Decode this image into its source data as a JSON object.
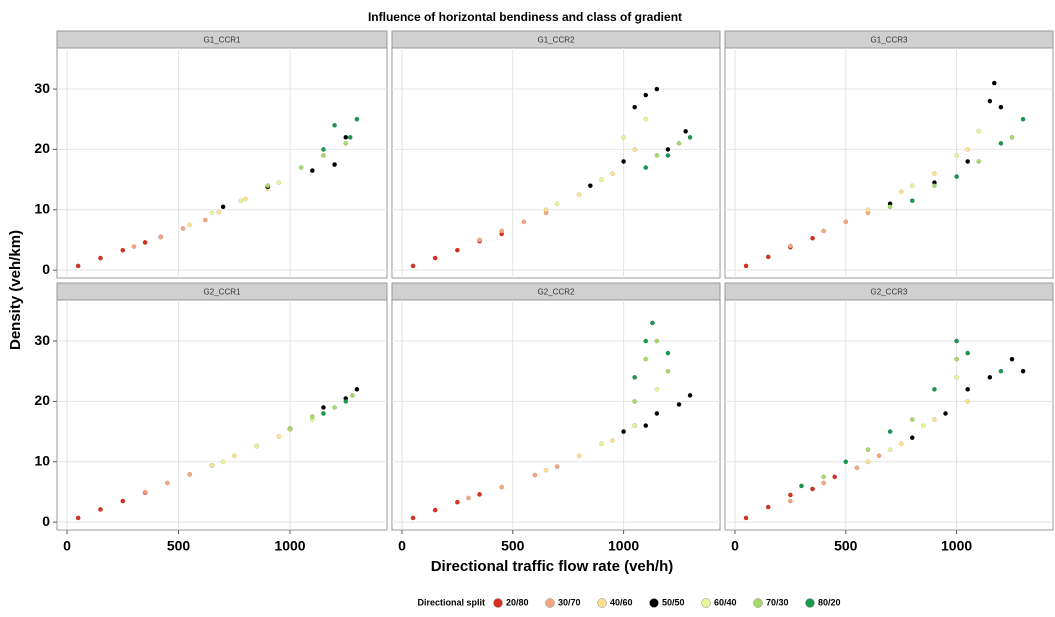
{
  "title": "Influence of horizontal bendiness and class of gradient",
  "x_label": "Directional traffic flow rate (veh/h)",
  "y_label": "Density (veh/km)",
  "legend_title": "Directional split",
  "chart_data": [
    {
      "type": "scatter",
      "facet": "G1_CCR1",
      "xlim": [
        -45,
        1435
      ],
      "ylim": [
        -1.3,
        36.8
      ],
      "xticks": [
        0,
        500,
        1000
      ],
      "yticks": [
        0,
        10,
        20,
        30
      ],
      "grid": true,
      "series": [
        {
          "name": "20/80",
          "color": "#d7301f",
          "x": [
            50,
            150,
            250,
            350,
            420
          ],
          "y": [
            0.7,
            2,
            3.3,
            4.6,
            5.5
          ]
        },
        {
          "name": "30/70",
          "color": "#f4a582",
          "x": [
            300,
            420,
            520,
            620
          ],
          "y": [
            3.9,
            5.5,
            6.9,
            8.3
          ]
        },
        {
          "name": "40/60",
          "color": "#fee090",
          "x": [
            550,
            680,
            800,
            900
          ],
          "y": [
            7.5,
            9.6,
            11.8,
            13.5
          ]
        },
        {
          "name": "50/50",
          "color": "#000000",
          "x": [
            700,
            900,
            1100,
            1200,
            1250
          ],
          "y": [
            10.5,
            13.8,
            16.5,
            17.5,
            22
          ]
        },
        {
          "name": "60/40",
          "color": "#e6f598",
          "x": [
            650,
            780,
            950
          ],
          "y": [
            9.5,
            11.5,
            14.5
          ]
        },
        {
          "name": "70/30",
          "color": "#a6d96a",
          "x": [
            900,
            1050,
            1150,
            1250
          ],
          "y": [
            14,
            17,
            19,
            21
          ]
        },
        {
          "name": "80/20",
          "color": "#1a9850",
          "x": [
            1150,
            1200,
            1270,
            1300
          ],
          "y": [
            20,
            24,
            22,
            25
          ]
        }
      ]
    },
    {
      "type": "scatter",
      "facet": "G1_CCR2",
      "xlim": [
        -45,
        1435
      ],
      "ylim": [
        -1.3,
        36.8
      ],
      "xticks": [
        0,
        500,
        1000
      ],
      "yticks": [
        0,
        10,
        20,
        30
      ],
      "grid": true,
      "series": [
        {
          "name": "20/80",
          "color": "#d7301f",
          "x": [
            50,
            150,
            250,
            350,
            450
          ],
          "y": [
            0.7,
            2,
            3.3,
            4.8,
            6
          ]
        },
        {
          "name": "30/70",
          "color": "#f4a582",
          "x": [
            350,
            450,
            550,
            650
          ],
          "y": [
            5,
            6.5,
            8,
            9.5
          ]
        },
        {
          "name": "40/60",
          "color": "#fee090",
          "x": [
            650,
            800,
            950,
            1050
          ],
          "y": [
            10,
            12.5,
            16,
            20
          ]
        },
        {
          "name": "50/50",
          "color": "#000000",
          "x": [
            850,
            1000,
            1050,
            1100,
            1150,
            1200,
            1280
          ],
          "y": [
            14,
            18,
            27,
            29,
            30,
            20,
            23
          ]
        },
        {
          "name": "60/40",
          "color": "#e6f598",
          "x": [
            700,
            900,
            1000,
            1100
          ],
          "y": [
            11,
            15,
            22,
            25
          ]
        },
        {
          "name": "70/30",
          "color": "#a6d96a",
          "x": [
            1150,
            1250
          ],
          "y": [
            19,
            21
          ]
        },
        {
          "name": "80/20",
          "color": "#1a9850",
          "x": [
            1100,
            1200,
            1300
          ],
          "y": [
            17,
            19,
            22
          ]
        }
      ]
    },
    {
      "type": "scatter",
      "facet": "G1_CCR3",
      "xlim": [
        -45,
        1435
      ],
      "ylim": [
        -1.3,
        36.8
      ],
      "xticks": [
        0,
        500,
        1000
      ],
      "yticks": [
        0,
        10,
        20,
        30
      ],
      "grid": true,
      "series": [
        {
          "name": "20/80",
          "color": "#d7301f",
          "x": [
            50,
            150,
            250,
            350
          ],
          "y": [
            0.7,
            2.2,
            3.8,
            5.3
          ]
        },
        {
          "name": "30/70",
          "color": "#f4a582",
          "x": [
            250,
            400,
            500,
            600
          ],
          "y": [
            4,
            6.5,
            8,
            9.5
          ]
        },
        {
          "name": "40/60",
          "color": "#fee090",
          "x": [
            600,
            750,
            900,
            1050
          ],
          "y": [
            10,
            13,
            16,
            20
          ]
        },
        {
          "name": "50/50",
          "color": "#000000",
          "x": [
            700,
            900,
            1050,
            1150,
            1170,
            1200
          ],
          "y": [
            11,
            14.5,
            18,
            28,
            31,
            27
          ]
        },
        {
          "name": "60/40",
          "color": "#e6f598",
          "x": [
            800,
            1000,
            1100
          ],
          "y": [
            14,
            19,
            23
          ]
        },
        {
          "name": "70/30",
          "color": "#a6d96a",
          "x": [
            700,
            900,
            1100,
            1250
          ],
          "y": [
            10.5,
            14,
            18,
            22
          ]
        },
        {
          "name": "80/20",
          "color": "#1a9850",
          "x": [
            800,
            1000,
            1200,
            1300
          ],
          "y": [
            11.5,
            15.5,
            21,
            25
          ]
        }
      ]
    },
    {
      "type": "scatter",
      "facet": "G2_CCR1",
      "xlim": [
        -45,
        1435
      ],
      "ylim": [
        -1.3,
        36.8
      ],
      "xticks": [
        0,
        500,
        1000
      ],
      "yticks": [
        0,
        10,
        20,
        30
      ],
      "grid": true,
      "series": [
        {
          "name": "20/80",
          "color": "#d7301f",
          "x": [
            50,
            150,
            250,
            350
          ],
          "y": [
            0.7,
            2.1,
            3.5,
            4.9
          ]
        },
        {
          "name": "30/70",
          "color": "#f4a582",
          "x": [
            350,
            450,
            550,
            650
          ],
          "y": [
            5,
            6.5,
            7.9,
            9.4
          ]
        },
        {
          "name": "40/60",
          "color": "#fee090",
          "x": [
            650,
            750,
            850,
            950
          ],
          "y": [
            9.4,
            11,
            12.6,
            14.2
          ]
        },
        {
          "name": "50/50",
          "color": "#000000",
          "x": [
            1000,
            1150,
            1250,
            1300
          ],
          "y": [
            15.5,
            19,
            20.5,
            22
          ]
        },
        {
          "name": "60/40",
          "color": "#e6f598",
          "x": [
            700,
            850,
            1000,
            1100
          ],
          "y": [
            10,
            12.6,
            15.3,
            17
          ]
        },
        {
          "name": "70/30",
          "color": "#a6d96a",
          "x": [
            1000,
            1100,
            1200,
            1280
          ],
          "y": [
            15.5,
            17.5,
            19,
            21
          ]
        },
        {
          "name": "80/20",
          "color": "#1a9850",
          "x": [
            1150,
            1250
          ],
          "y": [
            18,
            20
          ]
        }
      ]
    },
    {
      "type": "scatter",
      "facet": "G2_CCR2",
      "xlim": [
        -45,
        1435
      ],
      "ylim": [
        -1.3,
        36.8
      ],
      "xticks": [
        0,
        500,
        1000
      ],
      "yticks": [
        0,
        10,
        20,
        30
      ],
      "grid": true,
      "series": [
        {
          "name": "20/80",
          "color": "#d7301f",
          "x": [
            50,
            150,
            250,
            350
          ],
          "y": [
            0.7,
            2,
            3.3,
            4.6
          ]
        },
        {
          "name": "30/70",
          "color": "#f4a582",
          "x": [
            300,
            450,
            600,
            700
          ],
          "y": [
            4,
            5.8,
            7.8,
            9.2
          ]
        },
        {
          "name": "40/60",
          "color": "#fee090",
          "x": [
            650,
            800,
            950,
            1050
          ],
          "y": [
            8.6,
            11,
            13.5,
            16
          ]
        },
        {
          "name": "50/50",
          "color": "#000000",
          "x": [
            1000,
            1100,
            1150,
            1250,
            1300
          ],
          "y": [
            15,
            16,
            18,
            19.5,
            21
          ]
        },
        {
          "name": "60/40",
          "color": "#e6f598",
          "x": [
            900,
            1050,
            1150
          ],
          "y": [
            13,
            16,
            22
          ]
        },
        {
          "name": "70/30",
          "color": "#a6d96a",
          "x": [
            1050,
            1100,
            1150,
            1200
          ],
          "y": [
            20,
            27,
            30,
            25
          ]
        },
        {
          "name": "80/20",
          "color": "#1a9850",
          "x": [
            1050,
            1100,
            1130,
            1200
          ],
          "y": [
            24,
            30,
            33,
            28
          ]
        }
      ]
    },
    {
      "type": "scatter",
      "facet": "G2_CCR3",
      "xlim": [
        -45,
        1435
      ],
      "ylim": [
        -1.3,
        36.8
      ],
      "xticks": [
        0,
        500,
        1000
      ],
      "yticks": [
        0,
        10,
        20,
        30
      ],
      "grid": true,
      "series": [
        {
          "name": "20/80",
          "color": "#d7301f",
          "x": [
            50,
            150,
            250,
            350,
            450
          ],
          "y": [
            0.7,
            2.5,
            4.5,
            5.5,
            7.5
          ]
        },
        {
          "name": "30/70",
          "color": "#f4a582",
          "x": [
            250,
            400,
            550,
            650
          ],
          "y": [
            3.5,
            6.5,
            9,
            11
          ]
        },
        {
          "name": "40/60",
          "color": "#fee090",
          "x": [
            600,
            750,
            900,
            1050
          ],
          "y": [
            10,
            13,
            17,
            20
          ]
        },
        {
          "name": "50/50",
          "color": "#000000",
          "x": [
            800,
            950,
            1050,
            1150,
            1250,
            1300
          ],
          "y": [
            14,
            18,
            22,
            24,
            27,
            25
          ]
        },
        {
          "name": "60/40",
          "color": "#e6f598",
          "x": [
            700,
            850,
            1000
          ],
          "y": [
            12,
            16,
            24
          ]
        },
        {
          "name": "70/30",
          "color": "#a6d96a",
          "x": [
            400,
            600,
            800,
            1000
          ],
          "y": [
            7.5,
            12,
            17,
            27
          ]
        },
        {
          "name": "80/20",
          "color": "#1a9850",
          "x": [
            300,
            500,
            700,
            900,
            1000,
            1050,
            1200
          ],
          "y": [
            6,
            10,
            15,
            22,
            30,
            28,
            25
          ]
        }
      ]
    }
  ]
}
